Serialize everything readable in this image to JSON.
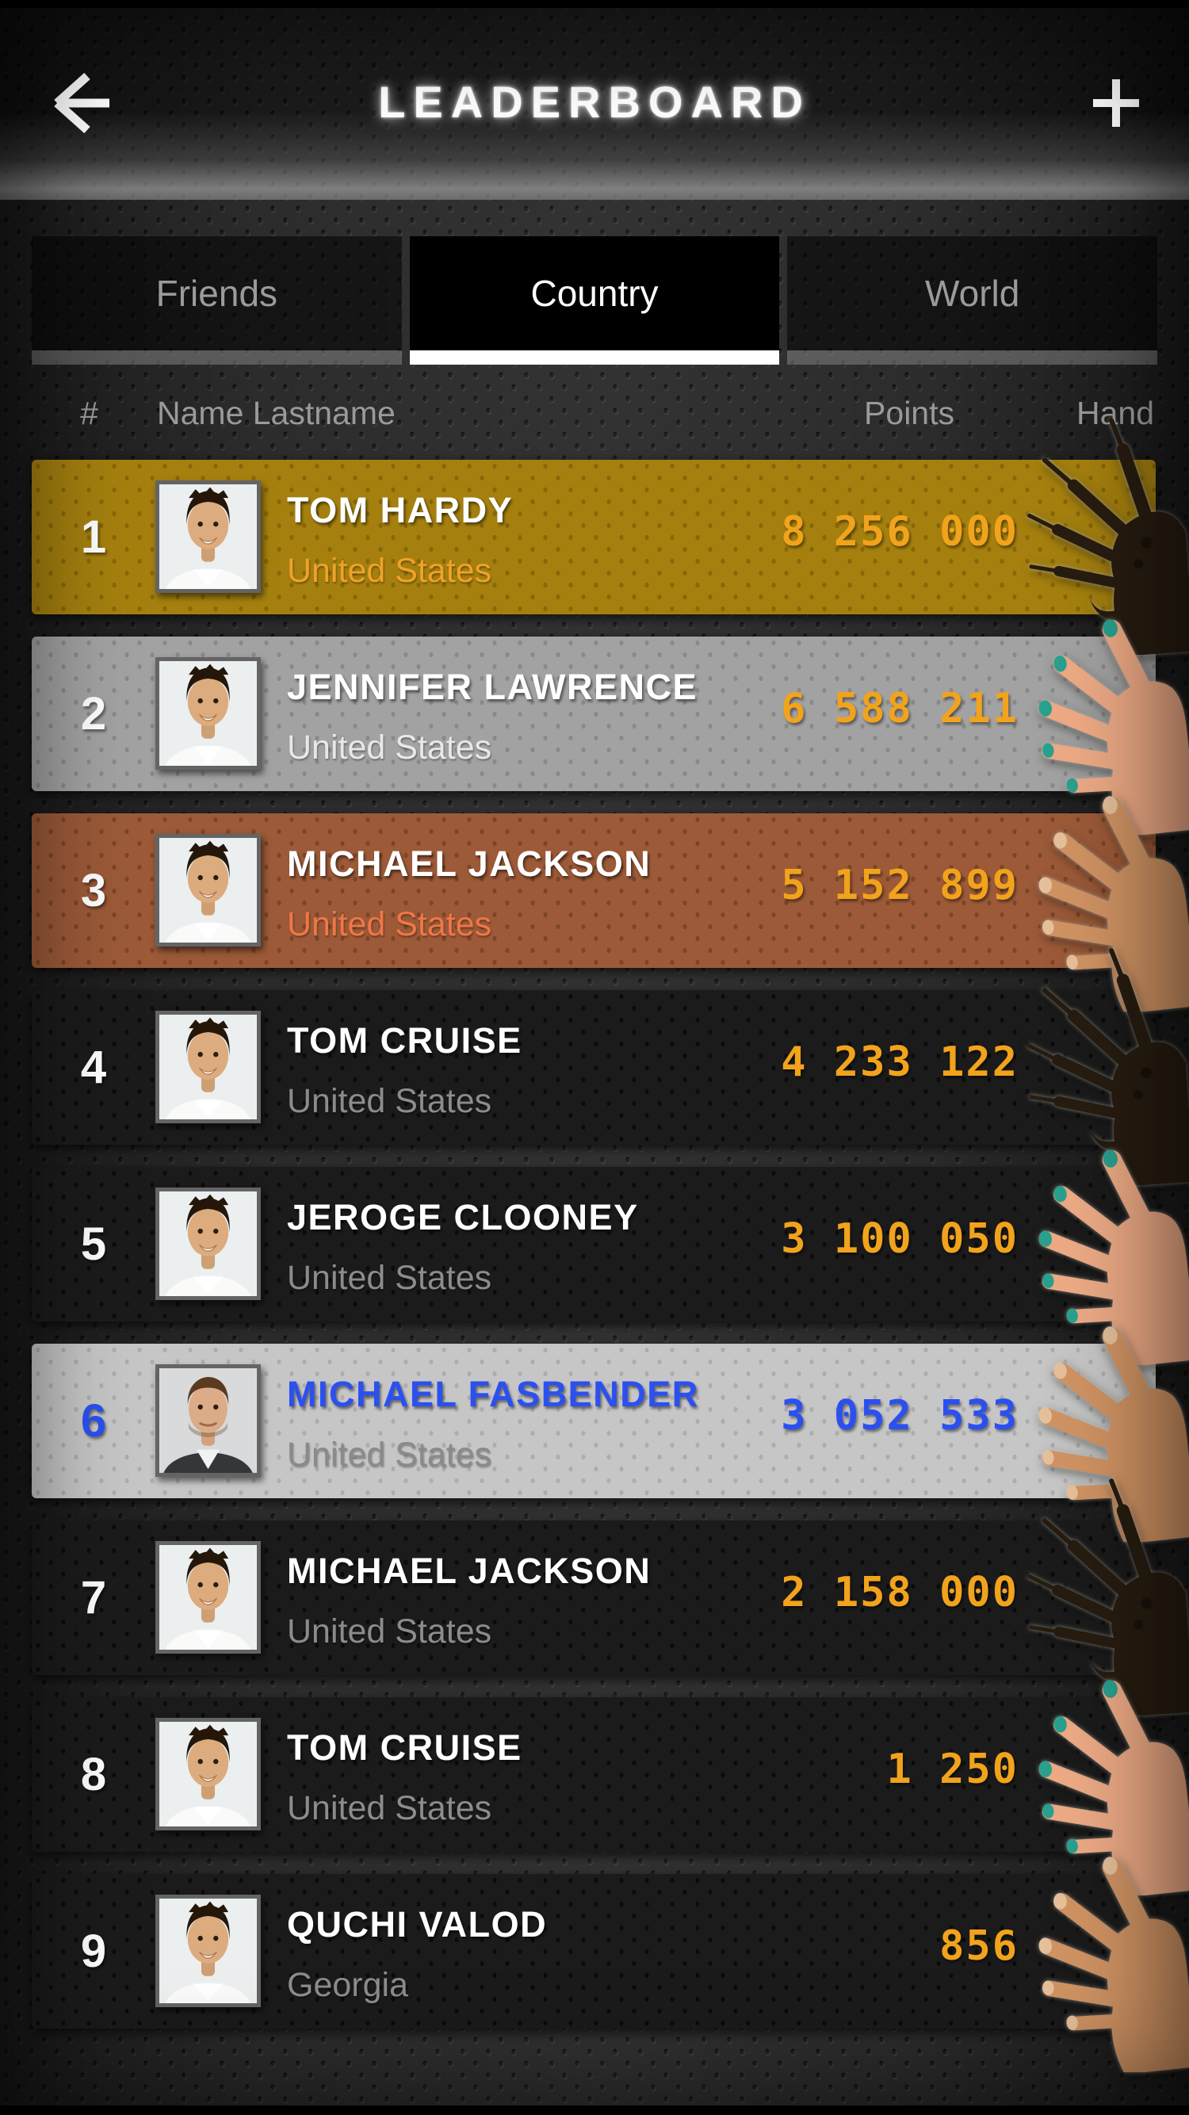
{
  "header": {
    "title": "LEADERBOARD",
    "back_icon": "arrow-left",
    "add_icon": "plus"
  },
  "tabs": [
    {
      "id": "friends",
      "label": "Friends",
      "active": false
    },
    {
      "id": "country",
      "label": "Country",
      "active": true
    },
    {
      "id": "world",
      "label": "World",
      "active": false
    }
  ],
  "table_header": {
    "rank": "#",
    "name": "Name Lastname",
    "points": "Points",
    "hand": "Hand"
  },
  "rows": [
    {
      "rank": "1",
      "name": "TOM HARDY",
      "country": "United States",
      "points": "8 256 000",
      "hand": "claw",
      "style": "gold",
      "avatar": "young-man"
    },
    {
      "rank": "2",
      "name": "JENNIFER LAWRENCE",
      "country": "United States",
      "points": "6 588 211",
      "hand": "female",
      "style": "silver",
      "avatar": "young-man"
    },
    {
      "rank": "3",
      "name": "MICHAEL JACKSON",
      "country": "United States",
      "points": "5 152 899",
      "hand": "male",
      "style": "bronze",
      "avatar": "young-man"
    },
    {
      "rank": "4",
      "name": "TOM CRUISE",
      "country": "United States",
      "points": "4 233 122",
      "hand": "claw",
      "style": "dark",
      "avatar": "young-man"
    },
    {
      "rank": "5",
      "name": "JEROGE CLOONEY",
      "country": "United States",
      "points": "3 100 050",
      "hand": "female",
      "style": "dark",
      "avatar": "young-man"
    },
    {
      "rank": "6",
      "name": "MICHAEL FASBENDER",
      "country": "United States",
      "points": "3 052 533",
      "hand": "male",
      "style": "highlight",
      "avatar": "fassbender"
    },
    {
      "rank": "7",
      "name": "MICHAEL JACKSON",
      "country": "United States",
      "points": "2 158 000",
      "hand": "claw",
      "style": "dark",
      "avatar": "young-man"
    },
    {
      "rank": "8",
      "name": "TOM CRUISE",
      "country": "United States",
      "points": "1 250",
      "hand": "female",
      "style": "dark",
      "avatar": "young-man"
    },
    {
      "rank": "9",
      "name": "QUCHI VALOD",
      "country": "Georgia",
      "points": "856",
      "hand": "male",
      "style": "dark",
      "avatar": "young-man"
    }
  ],
  "colors": {
    "points_orange": "#f2a31c",
    "self_blue": "#2b50f0",
    "row_gold": "#a5800f",
    "row_silver": "#a2a2a2",
    "row_bronze": "#9c5a38",
    "row_dark": "#1b1b1b",
    "row_highlight": "#c6c6c6",
    "country_gold_row": "#f0a228",
    "country_silver_row": "#e8e8e8",
    "country_bronze_row": "#f07747",
    "country_default": "#8c8c8c",
    "hand_claw": "#271c10",
    "hand_female_skin": "#edaa85",
    "hand_male_skin": "#d09363",
    "nail_teal": "#2aa08f",
    "tab_inactive_text": "#9b9b9b",
    "tab_active_bg": "#000000",
    "tab_active_underline": "#ffffff",
    "title_white": "#ffffff"
  }
}
